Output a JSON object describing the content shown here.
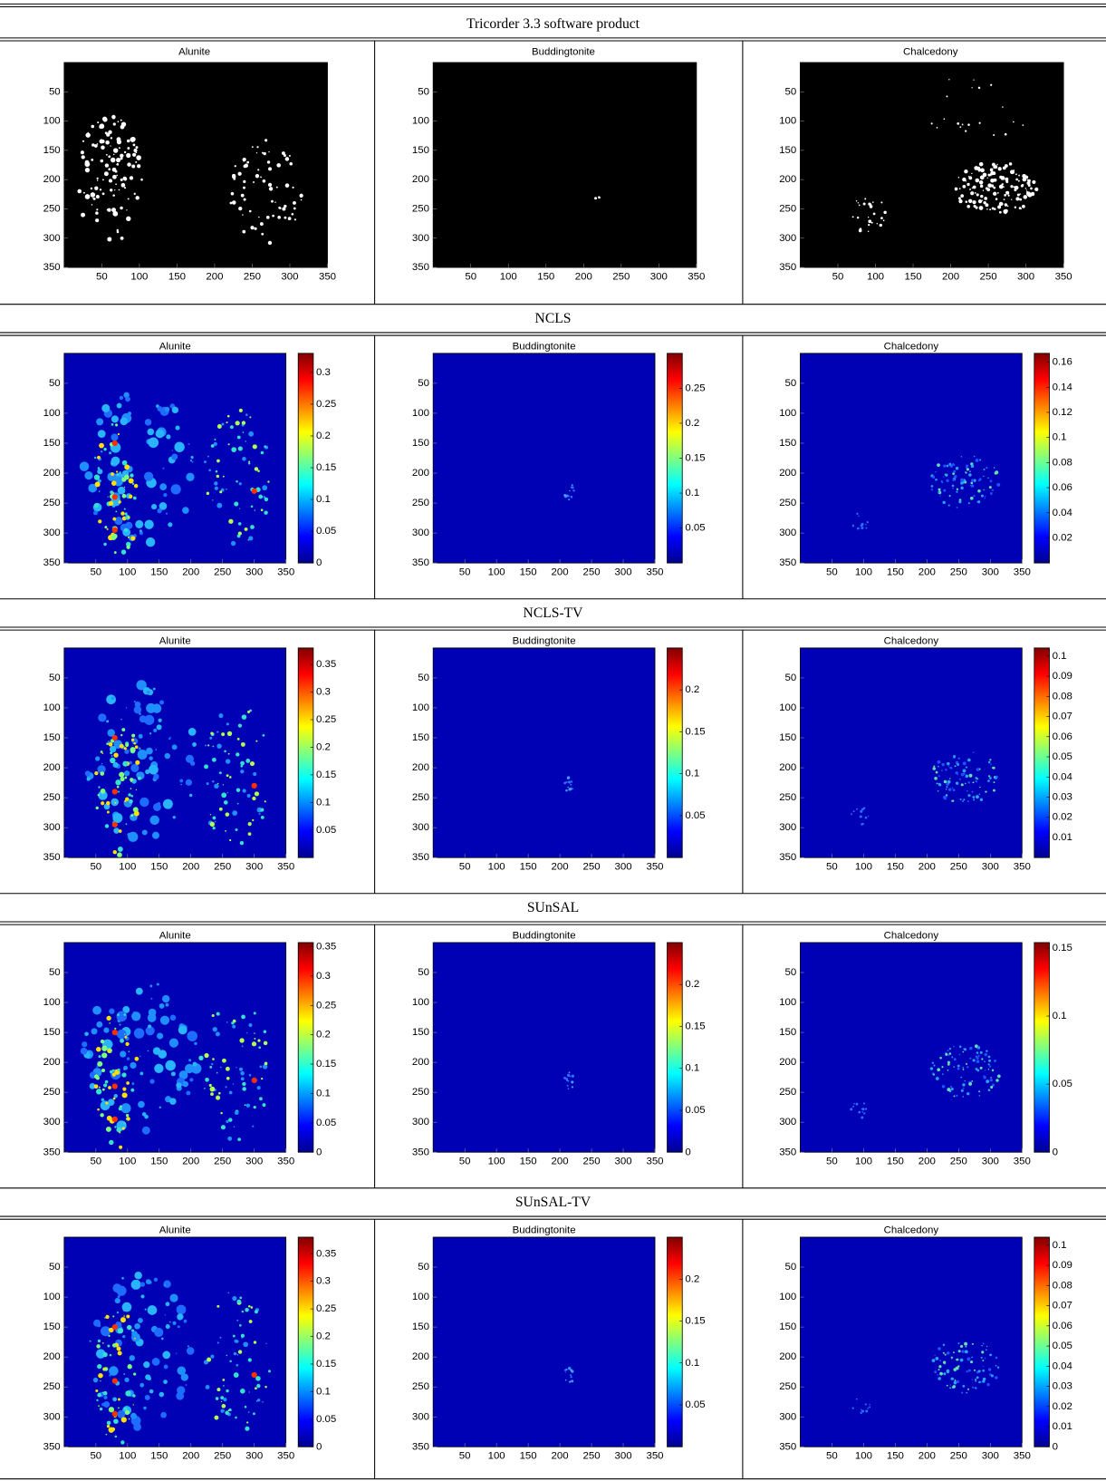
{
  "sections": [
    {
      "title": "Tricorder 3.3 software product",
      "panels": [
        {
          "title": "Alunite",
          "xlim": [
            0,
            350
          ],
          "ylim": [
            0,
            350
          ],
          "xticks": [
            50,
            100,
            150,
            200,
            250,
            300,
            350
          ],
          "yticks": [
            50,
            100,
            150,
            200,
            250,
            300,
            350
          ]
        },
        {
          "title": "Buddingtonite",
          "xlim": [
            0,
            350
          ],
          "ylim": [
            0,
            350
          ],
          "xticks": [
            50,
            100,
            150,
            200,
            250,
            300,
            350
          ],
          "yticks": [
            50,
            100,
            150,
            200,
            250,
            300,
            350
          ]
        },
        {
          "title": "Chalcedony",
          "xlim": [
            0,
            350
          ],
          "ylim": [
            0,
            350
          ],
          "xticks": [
            50,
            100,
            150,
            200,
            250,
            300,
            350
          ],
          "yticks": [
            50,
            100,
            150,
            200,
            250,
            300,
            350
          ]
        }
      ]
    },
    {
      "title": "NCLS",
      "panels": [
        {
          "title": "Alunite",
          "xlim": [
            0,
            350
          ],
          "ylim": [
            0,
            350
          ],
          "xticks": [
            50,
            100,
            150,
            200,
            250,
            300,
            350
          ],
          "yticks": [
            50,
            100,
            150,
            200,
            250,
            300,
            350
          ],
          "clim": [
            0,
            0.33
          ],
          "cticks": [
            0,
            0.05,
            0.1,
            0.15,
            0.2,
            0.25,
            0.3
          ]
        },
        {
          "title": "Buddingtonite",
          "xlim": [
            0,
            350
          ],
          "ylim": [
            0,
            350
          ],
          "xticks": [
            50,
            100,
            150,
            200,
            250,
            300,
            350
          ],
          "yticks": [
            50,
            100,
            150,
            200,
            250,
            300,
            350
          ],
          "clim": [
            0,
            0.3
          ],
          "cticks": [
            0.05,
            0.1,
            0.15,
            0.2,
            0.25
          ]
        },
        {
          "title": "Chalcedony",
          "xlim": [
            0,
            350
          ],
          "ylim": [
            0,
            350
          ],
          "xticks": [
            50,
            100,
            150,
            200,
            250,
            300,
            350
          ],
          "yticks": [
            50,
            100,
            150,
            200,
            250,
            300,
            350
          ],
          "clim": [
            0,
            0.167
          ],
          "cticks": [
            0.02,
            0.04,
            0.06,
            0.08,
            0.1,
            0.12,
            0.14,
            0.16
          ]
        }
      ]
    },
    {
      "title": "NCLS-TV",
      "panels": [
        {
          "title": "Alunite",
          "xlim": [
            0,
            350
          ],
          "ylim": [
            0,
            350
          ],
          "xticks": [
            50,
            100,
            150,
            200,
            250,
            300,
            350
          ],
          "yticks": [
            50,
            100,
            150,
            200,
            250,
            300,
            350
          ],
          "clim": [
            0,
            0.38
          ],
          "cticks": [
            0.05,
            0.1,
            0.15,
            0.2,
            0.25,
            0.3,
            0.35
          ]
        },
        {
          "title": "Buddingtonite",
          "xlim": [
            0,
            350
          ],
          "ylim": [
            0,
            350
          ],
          "xticks": [
            50,
            100,
            150,
            200,
            250,
            300,
            350
          ],
          "yticks": [
            50,
            100,
            150,
            200,
            250,
            300,
            350
          ],
          "clim": [
            0,
            0.25
          ],
          "cticks": [
            0.05,
            0.1,
            0.15,
            0.2
          ]
        },
        {
          "title": "Chalcedony",
          "xlim": [
            0,
            350
          ],
          "ylim": [
            0,
            350
          ],
          "xticks": [
            50,
            100,
            150,
            200,
            250,
            300,
            350
          ],
          "yticks": [
            50,
            100,
            150,
            200,
            250,
            300,
            350
          ],
          "clim": [
            0,
            0.104
          ],
          "cticks": [
            0.01,
            0.02,
            0.03,
            0.04,
            0.05,
            0.06,
            0.07,
            0.08,
            0.09,
            0.1
          ]
        }
      ]
    },
    {
      "title": "SUnSAL",
      "panels": [
        {
          "title": "Alunite",
          "xlim": [
            0,
            350
          ],
          "ylim": [
            0,
            350
          ],
          "xticks": [
            50,
            100,
            150,
            200,
            250,
            300,
            350
          ],
          "yticks": [
            50,
            100,
            150,
            200,
            250,
            300,
            350
          ],
          "clim": [
            0,
            0.357
          ],
          "cticks": [
            0,
            0.05,
            0.1,
            0.15,
            0.2,
            0.25,
            0.3,
            0.35
          ]
        },
        {
          "title": "Buddingtonite",
          "xlim": [
            0,
            350
          ],
          "ylim": [
            0,
            350
          ],
          "xticks": [
            50,
            100,
            150,
            200,
            250,
            300,
            350
          ],
          "yticks": [
            50,
            100,
            150,
            200,
            250,
            300,
            350
          ],
          "clim": [
            0,
            0.25
          ],
          "cticks": [
            0,
            0.05,
            0.1,
            0.15,
            0.2
          ]
        },
        {
          "title": "Chalcedony",
          "xlim": [
            0,
            350
          ],
          "ylim": [
            0,
            350
          ],
          "xticks": [
            50,
            100,
            150,
            200,
            250,
            300,
            350
          ],
          "yticks": [
            50,
            100,
            150,
            200,
            250,
            300,
            350
          ],
          "clim": [
            0,
            0.154
          ],
          "cticks": [
            0,
            0.05,
            0.1,
            0.15
          ]
        }
      ]
    },
    {
      "title": "SUnSAL-TV",
      "panels": [
        {
          "title": "Alunite",
          "xlim": [
            0,
            350
          ],
          "ylim": [
            0,
            350
          ],
          "xticks": [
            50,
            100,
            150,
            200,
            250,
            300,
            350
          ],
          "yticks": [
            50,
            100,
            150,
            200,
            250,
            300,
            350
          ],
          "clim": [
            0,
            0.38
          ],
          "cticks": [
            0,
            0.05,
            0.1,
            0.15,
            0.2,
            0.25,
            0.3,
            0.35
          ]
        },
        {
          "title": "Buddingtonite",
          "xlim": [
            0,
            350
          ],
          "ylim": [
            0,
            350
          ],
          "xticks": [
            50,
            100,
            150,
            200,
            250,
            300,
            350
          ],
          "yticks": [
            50,
            100,
            150,
            200,
            250,
            300,
            350
          ],
          "clim": [
            0,
            0.25
          ],
          "cticks": [
            0.05,
            0.1,
            0.15,
            0.2
          ]
        },
        {
          "title": "Chalcedony",
          "xlim": [
            0,
            350
          ],
          "ylim": [
            0,
            350
          ],
          "xticks": [
            50,
            100,
            150,
            200,
            250,
            300,
            350
          ],
          "yticks": [
            50,
            100,
            150,
            200,
            250,
            300,
            350
          ],
          "clim": [
            0,
            0.104
          ],
          "cticks": [
            0,
            0.01,
            0.02,
            0.03,
            0.04,
            0.05,
            0.06,
            0.07,
            0.08,
            0.09,
            0.1
          ]
        }
      ]
    }
  ]
}
